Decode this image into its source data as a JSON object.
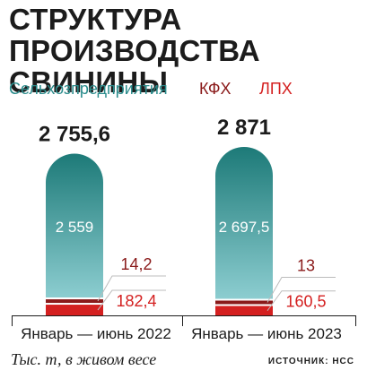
{
  "title": {
    "line1": "СТРУКТУРА",
    "line2": "ПРОИЗВОДСТВА СВИНИНЫ"
  },
  "legend": [
    {
      "label": "Сельхозпредприятия",
      "color": "#2a8c8c"
    },
    {
      "label": "КФХ",
      "color": "#8a1a1a"
    },
    {
      "label": "ЛПХ",
      "color": "#d42020"
    }
  ],
  "chart_data": {
    "type": "bar",
    "stacked": true,
    "categories": [
      "Январь — июнь 2022",
      "Январь — июнь 2023"
    ],
    "series": [
      {
        "name": "Сельхозпредприятия",
        "values": [
          2559,
          2697.5
        ],
        "labels": [
          "2 559",
          "2 697,5"
        ],
        "color": "#2a8c8c"
      },
      {
        "name": "КФХ",
        "values": [
          14.2,
          13
        ],
        "labels": [
          "14,2",
          "13"
        ],
        "color": "#8a1a1a"
      },
      {
        "name": "ЛПХ",
        "values": [
          182.4,
          160.5
        ],
        "labels": [
          "182,4",
          "160,5"
        ],
        "color": "#d42020"
      }
    ],
    "totals": [
      2755.6,
      2871
    ],
    "total_labels": [
      "2 755,6",
      "2 871"
    ],
    "ylim": [
      0,
      2871
    ]
  },
  "footer": {
    "unit": "Тыс. т, в живом весе",
    "source": "ИСТОЧНИК: НСС"
  }
}
